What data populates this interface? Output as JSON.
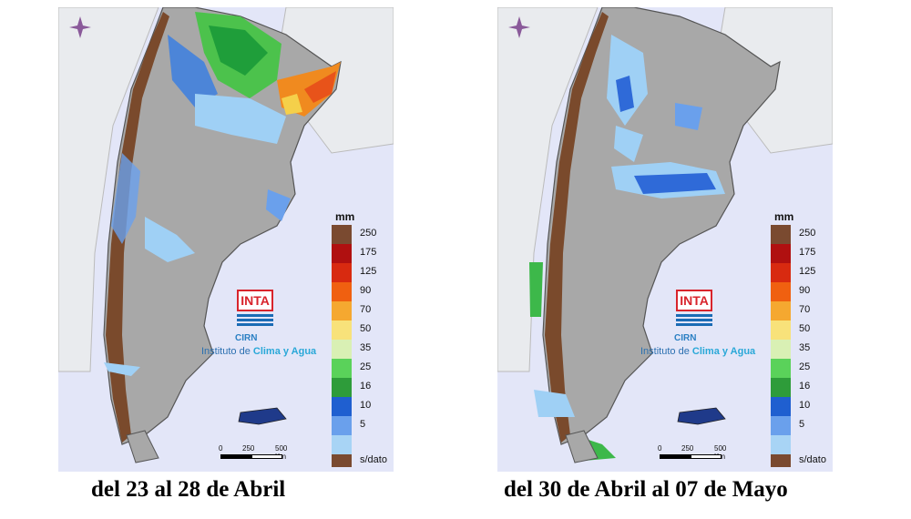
{
  "panels": [
    {
      "caption": "del 23 al 28 de Abril",
      "regions": [
        {
          "name": "north-green",
          "color": "#4cc24c"
        },
        {
          "name": "north-darkgreen",
          "color": "#1f9e3a"
        },
        {
          "name": "northeast-orange",
          "color": "#f08a1f"
        },
        {
          "name": "northeast-red",
          "color": "#e8531a"
        },
        {
          "name": "northeast-yellow",
          "color": "#f5d04a"
        },
        {
          "name": "andes-blue",
          "color": "#3c7fe0"
        },
        {
          "name": "light-blue",
          "color": "#9fd0f5"
        }
      ]
    },
    {
      "caption": "del 30 de Abril al  07 de Mayo",
      "regions": [
        {
          "name": "center-blue",
          "color": "#2f6ad8"
        },
        {
          "name": "light-blue",
          "color": "#9fd0f5"
        },
        {
          "name": "south-green",
          "color": "#3db84a"
        }
      ]
    }
  ],
  "legend": {
    "unit": "mm",
    "items": [
      {
        "label": "250",
        "color": "#7a4a30"
      },
      {
        "label": "175",
        "color": "#b01010"
      },
      {
        "label": "125",
        "color": "#d82a10"
      },
      {
        "label": "90",
        "color": "#f06010"
      },
      {
        "label": "70",
        "color": "#f5a830"
      },
      {
        "label": "50",
        "color": "#f8e27a"
      },
      {
        "label": "35",
        "color": "#d9f0b4"
      },
      {
        "label": "25",
        "color": "#5ad25a"
      },
      {
        "label": "16",
        "color": "#2e9c3a"
      },
      {
        "label": "10",
        "color": "#1f5fd0"
      },
      {
        "label": "5",
        "color": "#6aa0ec"
      },
      {
        "label": "",
        "color": "#a8d4f5"
      },
      {
        "label": "s/dato",
        "color": "#7a4a30"
      }
    ]
  },
  "logo": {
    "brand": "INTA",
    "sub": "CIRN",
    "institute_prefix": "Instituto de ",
    "institute_accent": "Clima y Agua"
  },
  "scale_bar": {
    "labels": [
      "0",
      "250",
      "500 Km"
    ]
  },
  "colors": {
    "ocean": "#e3e6f8",
    "neighbor": "#e9ebee",
    "country": "#a8a8a8",
    "andes": "#7a4a2c"
  }
}
